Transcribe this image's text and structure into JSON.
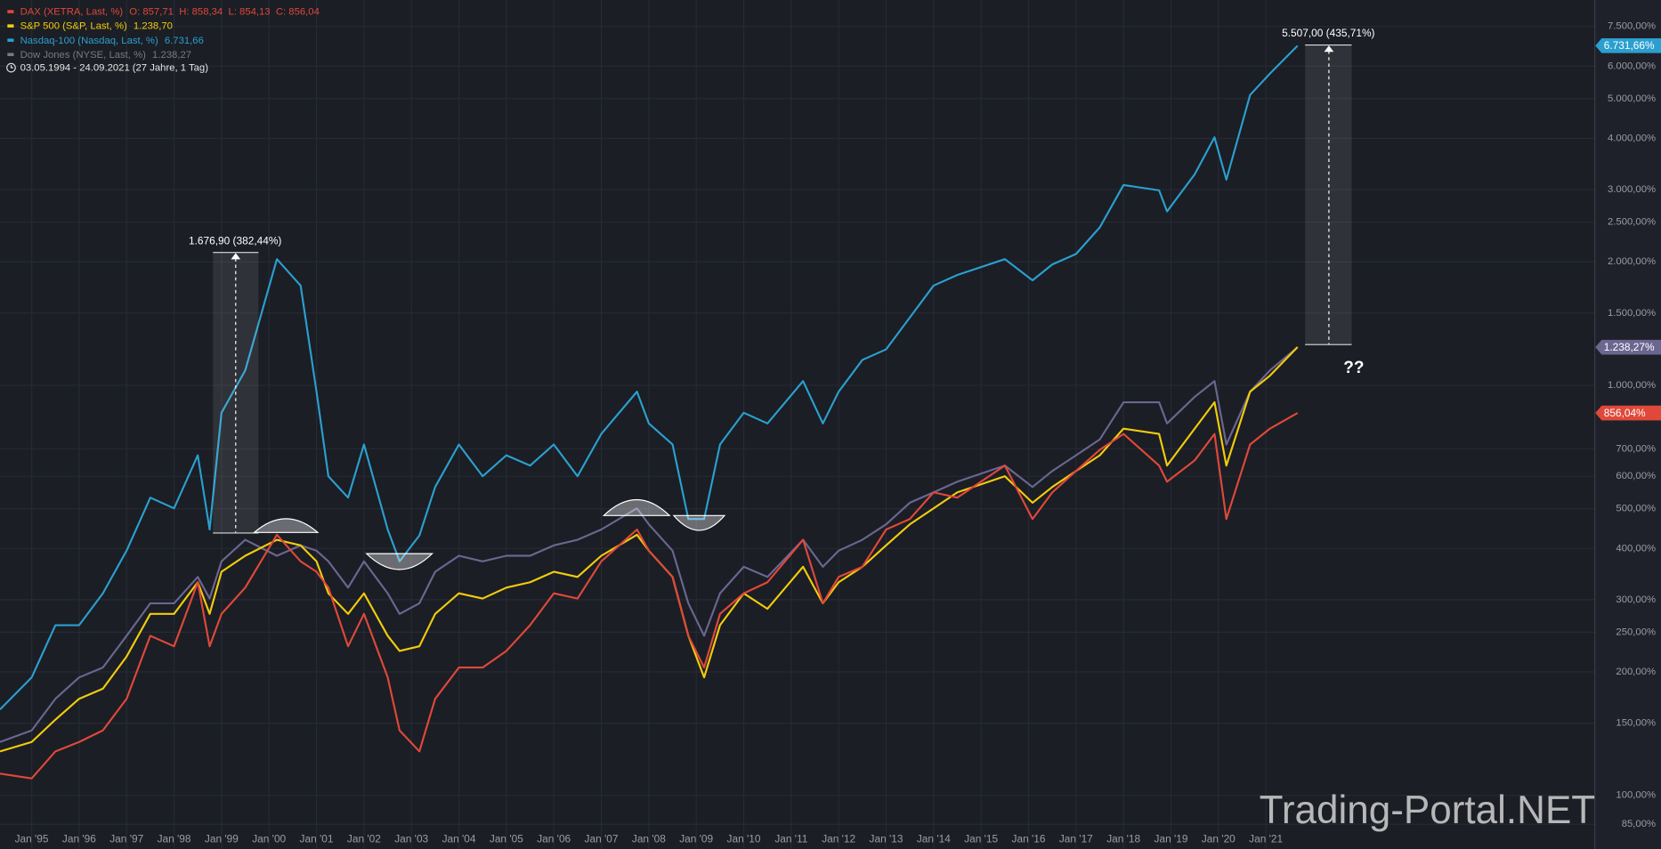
{
  "chart_data": {
    "type": "line",
    "log_scale": true,
    "grid": true,
    "legend_position": "top-left",
    "date_range": "03.05.1994 - 24.09.2021",
    "duration": "(27 Jahre, 1 Tag)",
    "annotations": [
      "1.676,90 (382,44%)",
      "5.507,00 (435,71%)",
      "??"
    ],
    "watermark": "Trading-Portal.NET",
    "x": [
      "1994-05",
      "1995-01",
      "1995-07",
      "1996-01",
      "1996-07",
      "1997-01",
      "1997-07",
      "1998-01",
      "1998-07",
      "1998-10",
      "1999-01",
      "1999-07",
      "2000-03",
      "2000-09",
      "2001-01",
      "2001-04",
      "2001-09",
      "2002-01",
      "2002-07",
      "2002-10",
      "2003-03",
      "2003-07",
      "2004-01",
      "2004-07",
      "2005-01",
      "2005-07",
      "2006-01",
      "2006-07",
      "2007-01",
      "2007-10",
      "2008-01",
      "2008-07",
      "2008-11",
      "2009-03",
      "2009-07",
      "2010-01",
      "2010-07",
      "2011-04",
      "2011-09",
      "2012-01",
      "2012-07",
      "2013-01",
      "2013-07",
      "2014-01",
      "2014-07",
      "2015-07",
      "2016-02",
      "2016-07",
      "2017-01",
      "2017-07",
      "2018-01",
      "2018-10",
      "2018-12",
      "2019-07",
      "2019-12",
      "2020-03",
      "2020-09",
      "2021-02",
      "2021-09"
    ],
    "xlim": [
      "1994-05",
      "2027-12"
    ],
    "xticks": [
      {
        "value": "1995-01",
        "label": "Jan '95"
      },
      {
        "value": "1996-01",
        "label": "Jan '96"
      },
      {
        "value": "1997-01",
        "label": "Jan '97"
      },
      {
        "value": "1998-01",
        "label": "Jan '98"
      },
      {
        "value": "1999-01",
        "label": "Jan '99"
      },
      {
        "value": "2000-01",
        "label": "Jan '00"
      },
      {
        "value": "2001-01",
        "label": "Jan '01"
      },
      {
        "value": "2002-01",
        "label": "Jan '02"
      },
      {
        "value": "2003-01",
        "label": "Jan '03"
      },
      {
        "value": "2004-01",
        "label": "Jan '04"
      },
      {
        "value": "2005-01",
        "label": "Jan '05"
      },
      {
        "value": "2006-01",
        "label": "Jan '06"
      },
      {
        "value": "2007-01",
        "label": "Jan '07"
      },
      {
        "value": "2008-01",
        "label": "Jan '08"
      },
      {
        "value": "2009-01",
        "label": "Jan '09"
      },
      {
        "value": "2010-01",
        "label": "Jan '10"
      },
      {
        "value": "2011-01",
        "label": "Jan '11"
      },
      {
        "value": "2012-01",
        "label": "Jan '12"
      },
      {
        "value": "2013-01",
        "label": "Jan '13"
      },
      {
        "value": "2014-01",
        "label": "Jan '14"
      },
      {
        "value": "2015-01",
        "label": "Jan '15"
      },
      {
        "value": "2016-01",
        "label": "Jan '16"
      },
      {
        "value": "2017-01",
        "label": "Jan '17"
      },
      {
        "value": "2018-01",
        "label": "Jan '18"
      },
      {
        "value": "2019-01",
        "label": "Jan '19"
      },
      {
        "value": "2020-01",
        "label": "Jan '20"
      },
      {
        "value": "2021-01",
        "label": "Jan '21"
      }
    ],
    "ylim": [
      74,
      8700
    ],
    "yticks": [
      {
        "value": 85,
        "label": "85,00%"
      },
      {
        "value": 100,
        "label": "100,00%"
      },
      {
        "value": 150,
        "label": "150,00%"
      },
      {
        "value": 200,
        "label": "200,00%"
      },
      {
        "value": 250,
        "label": "250,00%"
      },
      {
        "value": 300,
        "label": "300,00%"
      },
      {
        "value": 400,
        "label": "400,00%"
      },
      {
        "value": 500,
        "label": "500,00%"
      },
      {
        "value": 600,
        "label": "600,00%"
      },
      {
        "value": 700,
        "label": "700,00%"
      },
      {
        "value": 1000,
        "label": "1.000,00%"
      },
      {
        "value": 1500,
        "label": "1.500,00%"
      },
      {
        "value": 2000,
        "label": "2.000,00%"
      },
      {
        "value": 2500,
        "label": "2.500,00%"
      },
      {
        "value": 3000,
        "label": "3.000,00%"
      },
      {
        "value": 4000,
        "label": "4.000,00%"
      },
      {
        "value": 5000,
        "label": "5.000,00%"
      },
      {
        "value": 6000,
        "label": "6.000,00%"
      },
      {
        "value": 7500,
        "label": "7.500,00%"
      }
    ],
    "series": [
      {
        "name": "DAX (XETRA, Last, %)",
        "ohlc": "O: 857,71  H: 858,34  L: 854,13  C: 856,04",
        "color": "#e0483a",
        "badge_label": "856,04%",
        "values": [
          113,
          110,
          128,
          135,
          144,
          172,
          245,
          231,
          331,
          231,
          277,
          321,
          432,
          372,
          351,
          321,
          231,
          277,
          194,
          144,
          128,
          172,
          205,
          205,
          225,
          260,
          311,
          302,
          372,
          445,
          395,
          341,
          245,
          205,
          277,
          311,
          331,
          420,
          294,
          341,
          361,
          445,
          472,
          548,
          532,
          637,
          472,
          548,
          618,
          696,
          761,
          637,
          582,
          656,
          761,
          472,
          717,
          784,
          856.04
        ]
      },
      {
        "name": "S&P 500 (S&P, Last, %)",
        "last_label": "1.238,70",
        "color": "#f2cc0c",
        "values": [
          128,
          135,
          153,
          172,
          182,
          218,
          277,
          277,
          331,
          277,
          351,
          384,
          420,
          407,
          372,
          311,
          277,
          311,
          245,
          225,
          231,
          277,
          311,
          302,
          321,
          331,
          351,
          341,
          384,
          432,
          395,
          341,
          245,
          194,
          260,
          311,
          285,
          361,
          294,
          331,
          361,
          407,
          458,
          501,
          548,
          600,
          517,
          565,
          618,
          675,
          784,
          761,
          637,
          784,
          909,
          637,
          965,
          1055,
          1238.7
        ]
      },
      {
        "name": "Nasdaq-100 (Nasdaq, Last, %)",
        "last_label": "6.731,66",
        "color": "#2b9fcf",
        "badge_label": "6.731,66%",
        "values": [
          162,
          194,
          260,
          260,
          311,
          395,
          532,
          501,
          675,
          445,
          857,
          1087,
          2030,
          1750,
          965,
          600,
          532,
          717,
          445,
          372,
          430,
          565,
          717,
          600,
          675,
          637,
          717,
          600,
          761,
          965,
          807,
          717,
          472,
          472,
          717,
          857,
          807,
          1024,
          807,
          965,
          1153,
          1224,
          1463,
          1750,
          1857,
          2030,
          1803,
          1971,
          2091,
          2427,
          3078,
          2988,
          2655,
          3269,
          4025,
          3172,
          5105,
          5751,
          6731.66
        ]
      },
      {
        "name": "Dow Jones (NYSE, Last, %)",
        "last_label": "1.238,27",
        "color": "#6b6690",
        "legend_color": "#7b7b7b",
        "badge_label": "1.238,27%",
        "values": [
          135,
          144,
          172,
          194,
          205,
          245,
          294,
          294,
          341,
          302,
          372,
          420,
          384,
          407,
          395,
          372,
          321,
          372,
          311,
          277,
          294,
          351,
          384,
          372,
          384,
          384,
          407,
          420,
          445,
          501,
          458,
          395,
          294,
          245,
          311,
          361,
          341,
          420,
          361,
          395,
          420,
          458,
          517,
          548,
          582,
          637,
          565,
          618,
          675,
          738,
          909,
          909,
          807,
          937,
          1024,
          717,
          965,
          1087,
          1238.27
        ]
      }
    ]
  }
}
